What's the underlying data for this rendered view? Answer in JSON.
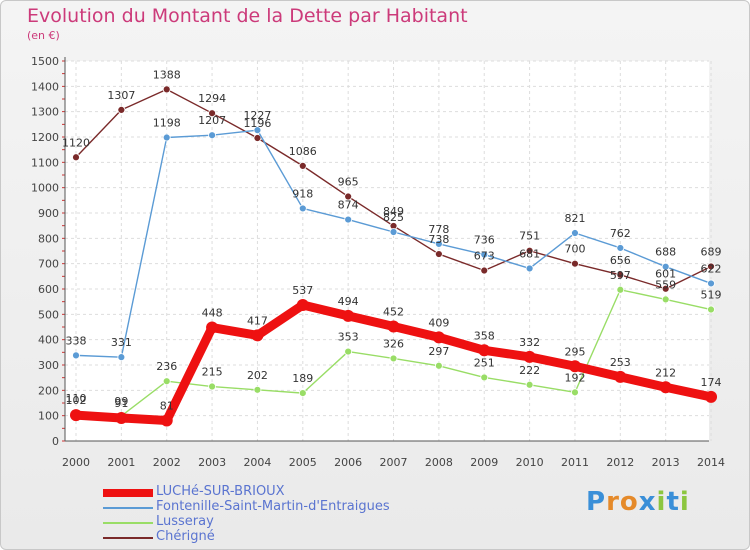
{
  "header": {
    "title": "Evolution du Montant de la Dette par Habitant",
    "unit": "(en €)"
  },
  "logo": {
    "text": "Proxiti",
    "letters": [
      "P",
      "r",
      "o",
      "x",
      "i",
      "t",
      "i"
    ],
    "colors": [
      "#3a8fd8",
      "#e58a2a",
      "#e58a2a",
      "#3a8fd8",
      "#8cc63f",
      "#3a8fd8",
      "#8cc63f"
    ]
  },
  "chart_data": {
    "type": "line",
    "categories": [
      "2000",
      "2001",
      "2002",
      "2003",
      "2004",
      "2005",
      "2006",
      "2007",
      "2008",
      "2009",
      "2010",
      "2011",
      "2012",
      "2013",
      "2014"
    ],
    "yticks": [
      0,
      100,
      200,
      300,
      400,
      500,
      600,
      700,
      800,
      900,
      1000,
      1100,
      1200,
      1300,
      1400,
      1500
    ],
    "ylim": [
      0,
      1500
    ],
    "grid": true,
    "legend_position": "bottom-left",
    "series": [
      {
        "name": "LUCHé-SUR-BRIOUX",
        "color": "#ee1111",
        "values": [
          102,
          91,
          81,
          448,
          417,
          537,
          494,
          452,
          409,
          358,
          332,
          295,
          253,
          212,
          174
        ],
        "labels": [
          "102",
          "91",
          "81",
          "448",
          "417",
          "537",
          "494",
          "452",
          "409",
          "358",
          "332",
          "295",
          "253",
          "212",
          "174"
        ]
      },
      {
        "name": "Fontenille-Saint-Martin-d'Entraigues",
        "color": "#5b9bd5",
        "values": [
          338,
          331,
          1198,
          1207,
          1227,
          918,
          874,
          825,
          778,
          736,
          681,
          821,
          762,
          688,
          622
        ],
        "labels": [
          "338",
          "331",
          "1198",
          "1207",
          "1227",
          "918",
          "874",
          "825",
          "778",
          "736",
          "681",
          "821",
          "762",
          "688",
          "622"
        ]
      },
      {
        "name": "Lusseray",
        "color": "#99dd66",
        "values": [
          110,
          99,
          236,
          215,
          202,
          189,
          353,
          326,
          297,
          251,
          222,
          192,
          597,
          559,
          519
        ],
        "labels": [
          "110",
          "99",
          "236",
          "215",
          "202",
          "189",
          "353",
          "326",
          "297",
          "251",
          "222",
          "192",
          "597",
          "559",
          "519"
        ]
      },
      {
        "name": "Chérigné",
        "color": "#7a2a2a",
        "values": [
          1120,
          1307,
          1388,
          1294,
          1196,
          1086,
          965,
          849,
          738,
          673,
          751,
          700,
          656,
          601,
          689
        ],
        "labels": [
          "1120",
          "1307",
          "1388",
          "1294",
          "1196",
          "1086",
          "965",
          "849",
          "738",
          "673",
          "751",
          "700",
          "656",
          "601",
          "689"
        ]
      }
    ]
  }
}
